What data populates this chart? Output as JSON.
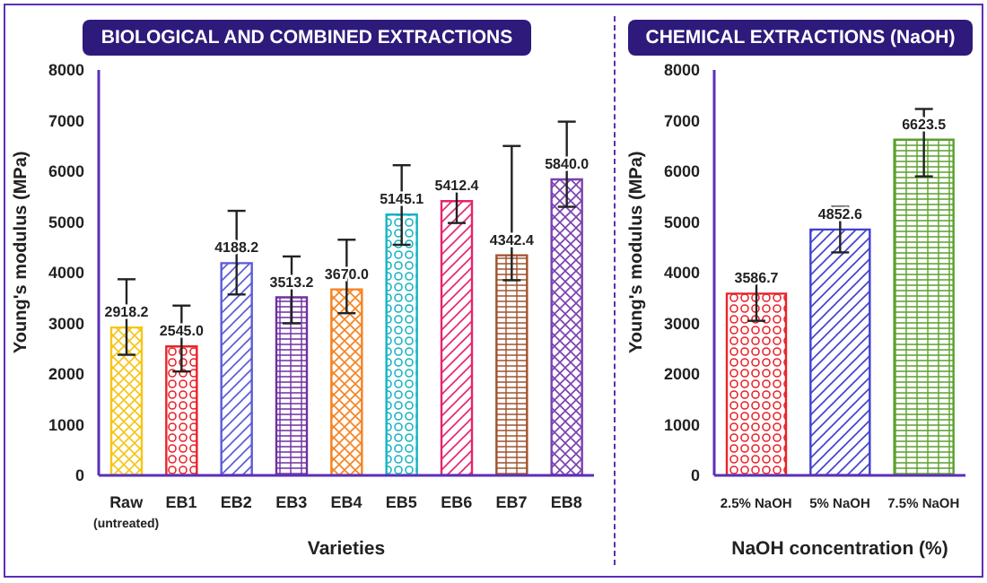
{
  "chart_data": [
    {
      "type": "bar",
      "title": "BIOLOGICAL AND COMBINED EXTRACTIONS",
      "xlabel": "Varieties",
      "ylabel": "Young's modulus (MPa)",
      "categories": [
        "Raw (untreated)",
        "EB1",
        "EB2",
        "EB3",
        "EB4",
        "EB5",
        "EB6",
        "EB7",
        "EB8"
      ],
      "values": [
        2918.2,
        2545.0,
        4188.2,
        3513.2,
        3670.0,
        5145.1,
        5412.4,
        4342.4,
        5840.0
      ],
      "value_labels": [
        "2918.2",
        "2545.0",
        "4188.2",
        "3513.2",
        "3670.0",
        "5145.1",
        "5412.4",
        "4342.4",
        "5840.0"
      ],
      "colors": [
        "#f5c518",
        "#e8232a",
        "#5a5ad6",
        "#7030a0",
        "#f58220",
        "#17b3c4",
        "#e6246e",
        "#a0522d",
        "#7a3fb0"
      ],
      "errors": [
        [
          2380,
          3870
        ],
        [
          2050,
          3350
        ],
        [
          3570,
          5220
        ],
        [
          3000,
          4320
        ],
        [
          3200,
          4650
        ],
        [
          4550,
          6120
        ],
        [
          4980,
          5650
        ],
        [
          3850,
          6500
        ],
        [
          5300,
          6980
        ]
      ],
      "ylim": [
        0,
        8000
      ],
      "yticks": [
        0,
        1000,
        2000,
        3000,
        4000,
        5000,
        6000,
        7000,
        8000
      ],
      "grid": false,
      "legend": false
    },
    {
      "type": "bar",
      "title": "CHEMICAL EXTRACTIONS (NaOH)",
      "xlabel": "NaOH concentration (%)",
      "ylabel": "Young's modulus (MPa)",
      "categories": [
        "2.5% NaOH",
        "5% NaOH",
        "7.5% NaOH"
      ],
      "values": [
        3586.7,
        4852.6,
        6623.5
      ],
      "value_labels": [
        "3586.7",
        "4852.6",
        "6623.5"
      ],
      "colors": [
        "#e8232a",
        "#4040d0",
        "#5aa02c"
      ],
      "errors": [
        [
          3050,
          4000
        ],
        [
          4400,
          5300
        ],
        [
          5900,
          7230
        ]
      ],
      "ylim": [
        0,
        8000
      ],
      "yticks": [
        0,
        1000,
        2000,
        3000,
        4000,
        5000,
        6000,
        7000,
        8000
      ],
      "grid": false,
      "legend": false
    }
  ]
}
